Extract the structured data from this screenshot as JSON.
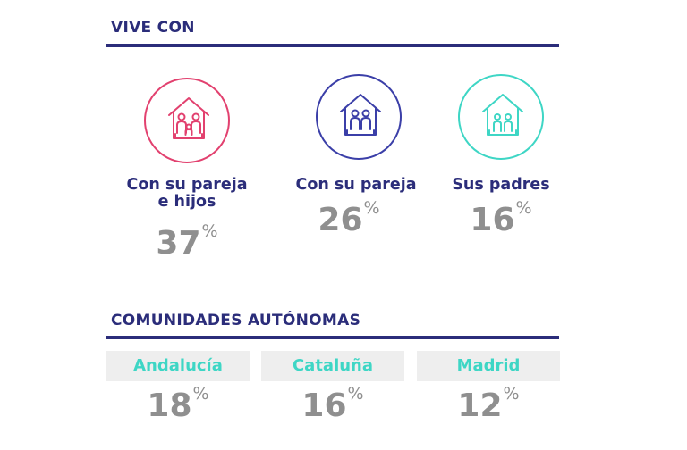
{
  "colors": {
    "title": "#2b2d7a",
    "percent": "#8f8f8f",
    "pink": "#e2416f",
    "navy": "#3b3fa8",
    "teal": "#3ed6c5",
    "region_bg": "#eeeeee"
  },
  "vive_con": {
    "title": "VIVE CON",
    "items": [
      {
        "icon": "house-family-icon",
        "label_line1": "Con su pareja",
        "label_line2": "e hijos",
        "value": "37",
        "unit": "%"
      },
      {
        "icon": "house-couple-icon",
        "label": "Con su pareja",
        "value": "26",
        "unit": "%"
      },
      {
        "icon": "house-parents-icon",
        "label": "Sus padres",
        "value": "16",
        "unit": "%"
      }
    ]
  },
  "comunidades": {
    "title": "COMUNIDADES AUTÓNOMAS",
    "items": [
      {
        "name": "Andalucía",
        "value": "18",
        "unit": "%"
      },
      {
        "name": "Cataluña",
        "value": "16",
        "unit": "%"
      },
      {
        "name": "Madrid",
        "value": "12",
        "unit": "%"
      }
    ]
  }
}
